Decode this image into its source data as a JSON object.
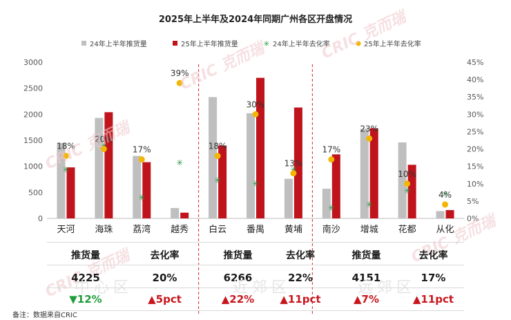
{
  "chart_data": {
    "type": "bar",
    "title": "2025年上半年及2024年同期广州各区开盘情况",
    "categories": [
      "天河",
      "海珠",
      "荔湾",
      "越秀",
      "白云",
      "番禺",
      "黄埔",
      "南沙",
      "增城",
      "花都",
      "从化"
    ],
    "series": [
      {
        "name": "24年上半年推货量",
        "kind": "bar",
        "axis": "left",
        "color": "#bfbfbf",
        "values": [
          1450,
          1930,
          1200,
          200,
          2330,
          2020,
          760,
          570,
          1720,
          1460,
          140
        ]
      },
      {
        "name": "25年上半年推货量",
        "kind": "bar",
        "axis": "left",
        "color": "#c0141c",
        "values": [
          980,
          2040,
          1080,
          110,
          1400,
          2700,
          2130,
          1230,
          1730,
          1030,
          160
        ]
      },
      {
        "name": "24年上半年去化率",
        "kind": "marker",
        "axis": "right",
        "color": "#2e9b4a",
        "values": [
          0.14,
          0.21,
          0.06,
          0.16,
          0.11,
          0.1,
          0.14,
          0.03,
          0.04,
          0.08,
          0.07
        ]
      },
      {
        "name": "25年上半年去化率",
        "kind": "dot",
        "axis": "right",
        "color": "#f2b705",
        "values": [
          0.18,
          0.2,
          0.17,
          0.39,
          0.18,
          0.3,
          0.13,
          0.17,
          0.23,
          0.1,
          0.04
        ]
      }
    ],
    "point_labels": [
      "18%",
      "20%",
      "17%",
      "39%",
      "18%",
      "30%",
      "13%",
      "17%",
      "23%",
      "10%",
      "4%"
    ],
    "y_left": {
      "min": 0,
      "max": 3000,
      "ticks": [
        "0",
        "500",
        "1000",
        "1500",
        "2000",
        "2500",
        "3000"
      ]
    },
    "y_right": {
      "min": 0,
      "max": 0.45,
      "ticks": [
        "0%",
        "5%",
        "10%",
        "15%",
        "20%",
        "25%",
        "30%",
        "35%",
        "40%",
        "45%"
      ]
    },
    "legend_position": "top",
    "grid": false,
    "group_separators_after": [
      "越秀",
      "黄埔"
    ]
  },
  "summary": {
    "groups": [
      {
        "zone": "中心区",
        "supply_label": "推货量",
        "rate_label": "去化率",
        "supply_value": "4225",
        "rate_value": "20%",
        "supply_change": "▼12%",
        "rate_change": "▲5pct",
        "supply_dir": "down",
        "rate_dir": "up"
      },
      {
        "zone": "近郊区",
        "supply_label": "推货量",
        "rate_label": "去化率",
        "supply_value": "6266",
        "rate_value": "22%",
        "supply_change": "▲22%",
        "rate_change": "▲11pct",
        "supply_dir": "up",
        "rate_dir": "up"
      },
      {
        "zone": "远郊区",
        "supply_label": "推货量",
        "rate_label": "去化率",
        "supply_value": "4151",
        "rate_value": "17%",
        "supply_change": "▲7%",
        "rate_change": "▲11pct",
        "supply_dir": "up",
        "rate_dir": "up"
      }
    ]
  },
  "watermark": "CRIC 克而瑞",
  "note": "备注：数据来自CRIC"
}
